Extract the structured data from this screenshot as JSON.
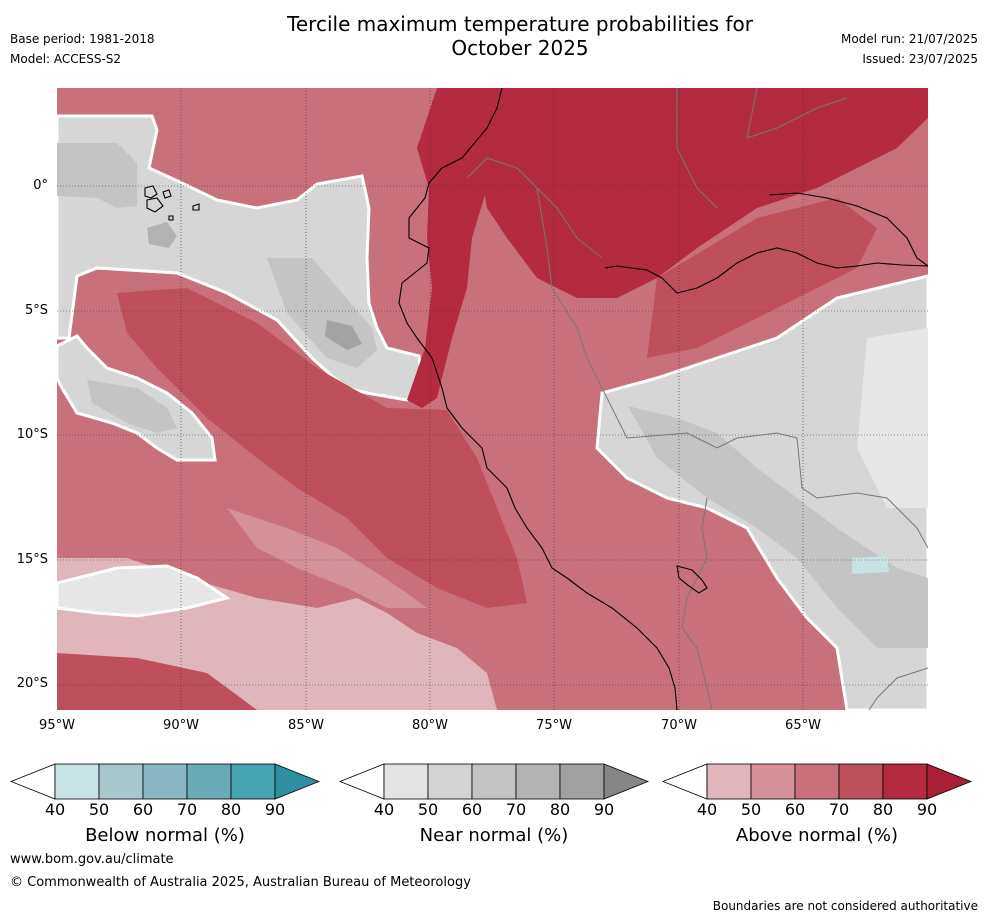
{
  "header": {
    "title_line1": "Tercile maximum temperature probabilities for",
    "title_line2": "October 2025",
    "base_period": "Base period: 1981-2018",
    "model": "Model: ACCESS-S2",
    "model_run": "Model run: 21/07/2025",
    "issued": "Issued: 23/07/2025"
  },
  "map": {
    "lat_labels": [
      "0°",
      "5°S",
      "10°S",
      "15°S",
      "20°S"
    ],
    "lon_labels": [
      "95°W",
      "90°W",
      "85°W",
      "80°W",
      "75°W",
      "70°W",
      "65°W"
    ],
    "colors": {
      "above": [
        "#e0b5bb",
        "#d4919a",
        "#c8707c",
        "#be505e",
        "#b42a40"
      ],
      "near": [
        "#e6e6e6",
        "#d6d6d6",
        "#c6c6c6",
        "#b4b4b4",
        "#a3a3a3"
      ],
      "below": [
        "#c8e2e6",
        "#a6c8cd",
        "#88b7c2",
        "#6aaab7",
        "#47a2b2"
      ]
    }
  },
  "colorbars": [
    {
      "name": "below",
      "label": "Below normal (%)",
      "ticks": [
        "40",
        "50",
        "60",
        "70",
        "80",
        "90"
      ],
      "colors": [
        "#c8e2e6",
        "#a6c8cd",
        "#88b7c2",
        "#6aaab7",
        "#47a2b2"
      ],
      "end_color": "#2f8fa2"
    },
    {
      "name": "near",
      "label": "Near normal (%)",
      "ticks": [
        "40",
        "50",
        "60",
        "70",
        "80",
        "90"
      ],
      "colors": [
        "#e3e3e3",
        "#d3d3d3",
        "#c3c3c3",
        "#b3b3b3",
        "#a1a1a1"
      ],
      "end_color": "#858585"
    },
    {
      "name": "above",
      "label": "Above normal (%)",
      "ticks": [
        "40",
        "50",
        "60",
        "70",
        "80",
        "90"
      ],
      "colors": [
        "#e0b5bb",
        "#d4919a",
        "#c8707c",
        "#be505e",
        "#b42a40"
      ],
      "end_color": "#ab1e38"
    }
  ],
  "footer": {
    "website": "www.bom.gov.au/climate",
    "copyright": "© Commonwealth of Australia 2025, Australian Bureau of Meteorology",
    "disclaimer": "Boundaries are not considered authoritative"
  }
}
